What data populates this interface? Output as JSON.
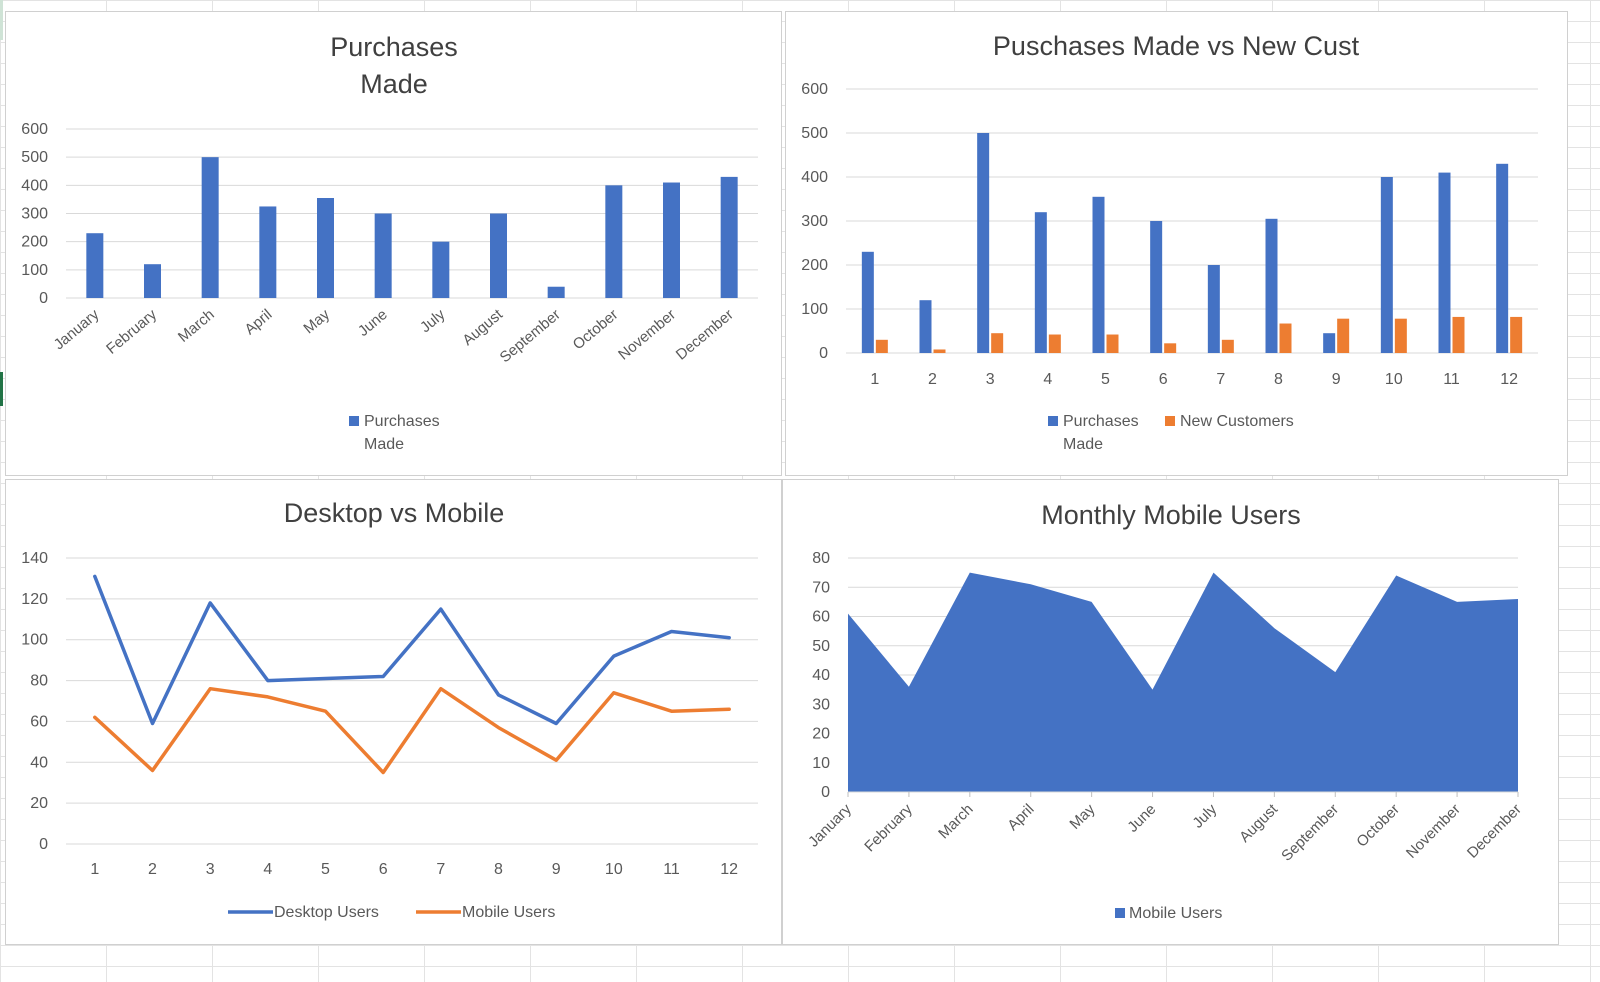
{
  "colors": {
    "blue": "#4472C4",
    "orange": "#ED7D31",
    "grid": "#d9d9d9",
    "text": "#595959",
    "title": "#404040"
  },
  "chart_data": [
    {
      "type": "bar",
      "title": "Purchases\nMade",
      "categories": [
        "January",
        "February",
        "March",
        "April",
        "May",
        "June",
        "July",
        "August",
        "September",
        "October",
        "November",
        "December"
      ],
      "series": [
        {
          "name": "Purchases\nMade",
          "values": [
            230,
            120,
            500,
            325,
            355,
            300,
            200,
            300,
            40,
            400,
            410,
            430
          ]
        }
      ],
      "ylim": [
        0,
        600
      ],
      "yticks": [
        0,
        100,
        200,
        300,
        400,
        500,
        600
      ],
      "legend": "bottom",
      "grid": true
    },
    {
      "type": "bar",
      "title": "Puschases Made vs New Cust",
      "categories": [
        "1",
        "2",
        "3",
        "4",
        "5",
        "6",
        "7",
        "8",
        "9",
        "10",
        "11",
        "12"
      ],
      "series": [
        {
          "name": "Purchases\nMade",
          "values": [
            230,
            120,
            500,
            320,
            355,
            300,
            200,
            305,
            45,
            400,
            410,
            430
          ]
        },
        {
          "name": "New Customers",
          "values": [
            30,
            8,
            45,
            42,
            42,
            22,
            30,
            67,
            78,
            78,
            82,
            82
          ]
        }
      ],
      "ylim": [
        0,
        600
      ],
      "yticks": [
        0,
        100,
        200,
        300,
        400,
        500,
        600
      ],
      "legend": "bottom",
      "grid": true
    },
    {
      "type": "line",
      "title": "Desktop vs Mobile",
      "x": [
        1,
        2,
        3,
        4,
        5,
        6,
        7,
        8,
        9,
        10,
        11,
        12
      ],
      "series": [
        {
          "name": "Desktop Users",
          "values": [
            131,
            59,
            118,
            80,
            81,
            82,
            115,
            73,
            59,
            92,
            104,
            101
          ]
        },
        {
          "name": "Mobile Users",
          "values": [
            62,
            36,
            76,
            72,
            65,
            35,
            76,
            57,
            41,
            74,
            65,
            66
          ]
        }
      ],
      "ylim": [
        0,
        140
      ],
      "yticks": [
        0,
        20,
        40,
        60,
        80,
        100,
        120,
        140
      ],
      "legend": "bottom",
      "grid": true
    },
    {
      "type": "area",
      "title": "Monthly Mobile Users",
      "categories": [
        "January",
        "February",
        "March",
        "April",
        "May",
        "June",
        "July",
        "August",
        "September",
        "October",
        "November",
        "December"
      ],
      "series": [
        {
          "name": "Mobile Users",
          "values": [
            61,
            36,
            75,
            71,
            65,
            35,
            75,
            56,
            41,
            74,
            65,
            66
          ]
        }
      ],
      "ylim": [
        0,
        80
      ],
      "yticks": [
        0,
        10,
        20,
        30,
        40,
        50,
        60,
        70,
        80
      ],
      "legend": "bottom",
      "grid": true
    }
  ]
}
